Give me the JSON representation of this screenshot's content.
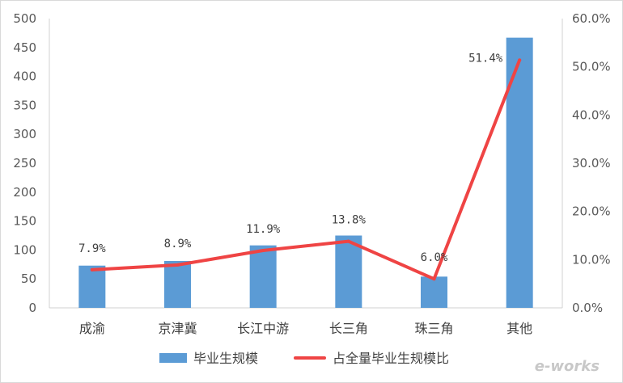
{
  "chart_data": {
    "type": "bar+line",
    "categories": [
      "成渝",
      "京津冀",
      "长江中游",
      "长三角",
      "珠三角",
      "其他"
    ],
    "series": [
      {
        "name": "毕业生规模",
        "type": "bar",
        "axis": "left",
        "color": "#5b9bd5",
        "values": [
          73,
          81,
          108,
          125,
          54,
          467
        ]
      },
      {
        "name": "占全量毕业生规模比",
        "type": "line",
        "axis": "right",
        "color": "#ef4444",
        "values": [
          7.9,
          8.9,
          11.9,
          13.8,
          6.0,
          51.4
        ],
        "labels": [
          "7.9%",
          "8.9%",
          "11.9%",
          "13.8%",
          "6.0%",
          "51.4%"
        ]
      }
    ],
    "y_left": {
      "min": 0,
      "max": 500,
      "ticks": [
        "0",
        "50",
        "100",
        "150",
        "200",
        "250",
        "300",
        "350",
        "400",
        "450",
        "500"
      ]
    },
    "y_right": {
      "min": 0,
      "max": 60,
      "ticks": [
        "0.0%",
        "10.0%",
        "20.0%",
        "30.0%",
        "40.0%",
        "50.0%",
        "60.0%"
      ]
    },
    "grid": false,
    "legend": "bottom-center"
  },
  "watermark": "e-works"
}
